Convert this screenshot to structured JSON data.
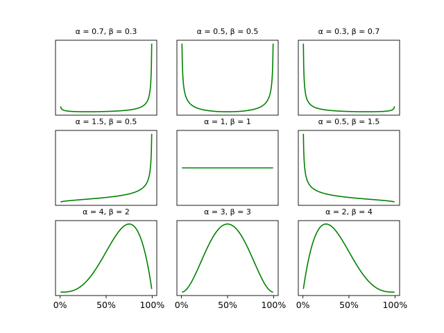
{
  "chart_data": {
    "type": "line",
    "layout": "3x3 grid of small multiples",
    "series_color": "#008000",
    "x_domain": [
      0,
      1
    ],
    "x_tick_labels": [
      "0%",
      "50%",
      "100%"
    ],
    "x_tick_values": [
      0,
      0.5,
      1
    ],
    "y_ticks_visible": false,
    "panels": [
      {
        "title": "α = 0.7, β = 0.3",
        "alpha": 0.7,
        "beta": 0.3
      },
      {
        "title": "α = 0.5, β = 0.5",
        "alpha": 0.5,
        "beta": 0.5
      },
      {
        "title": "α = 0.3, β = 0.7",
        "alpha": 0.3,
        "beta": 0.7
      },
      {
        "title": "α = 1.5, β = 0.5",
        "alpha": 1.5,
        "beta": 0.5
      },
      {
        "title": "α = 1, β = 1",
        "alpha": 1,
        "beta": 1
      },
      {
        "title": "α = 0.5, β = 1.5",
        "alpha": 0.5,
        "beta": 1.5
      },
      {
        "title": "α = 4, β = 2",
        "alpha": 4,
        "beta": 2
      },
      {
        "title": "α = 3, β = 3",
        "alpha": 3,
        "beta": 3
      },
      {
        "title": "α = 2, β = 4",
        "alpha": 2,
        "beta": 4
      }
    ]
  }
}
